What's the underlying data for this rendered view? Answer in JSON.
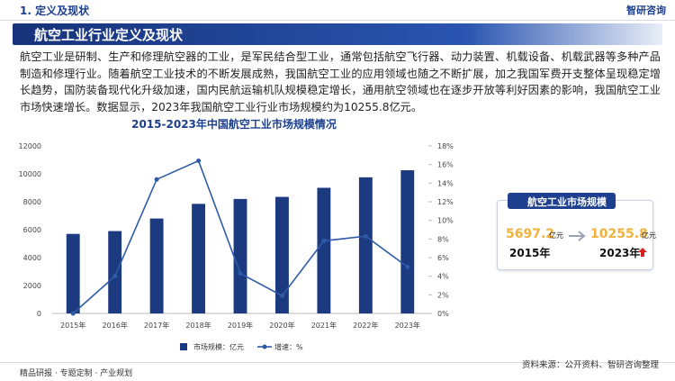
{
  "header": {
    "section": "1. 定义及现状",
    "logo": "智研咨询"
  },
  "banner": "航空工业行业定义及现状",
  "paragraph": "航空工业是研制、生产和修理航空器的工业，是军民结合型工业，通常包括航空飞行器、动力装置、机载设备、机载武器等多种产品制造和修理行业。随着航空工业技术的不断发展成熟，我国航空工业的应用领域也随之不断扩展，加之我国军费开支整体呈现稳定增长趋势，国防装备现代化升级加速，国内民航运输机队规模稳定增长，通用航空领域也在逐步开放等利好因素的影响，我国航空工业市场快速增长。数据显示，2023年我国航空工业行业市场规模约为10255.8亿元。",
  "chart_data": {
    "type": "bar",
    "title": "2015-2023年中国航空工业市场规模情况",
    "categories": [
      "2015年",
      "2016年",
      "2017年",
      "2018年",
      "2019年",
      "2020年",
      "2021年",
      "2022年",
      "2023年"
    ],
    "series": [
      {
        "name": "市场规模：亿元",
        "type": "bar",
        "color": "#1b3a80",
        "values": [
          5697.2,
          5900,
          6800,
          7850,
          8200,
          8350,
          9000,
          9750,
          10255.8
        ]
      },
      {
        "name": "增速：%",
        "type": "line",
        "axis": "y2",
        "color": "#2f5aa8",
        "values": [
          0,
          4,
          14.4,
          16.4,
          4.3,
          1.9,
          7.8,
          8.3,
          5
        ]
      }
    ],
    "ylim": [
      0,
      12000
    ],
    "yticks": [
      0,
      2000,
      4000,
      6000,
      8000,
      10000,
      12000
    ],
    "y2lim": [
      0,
      18
    ],
    "y2ticks": [
      {
        "value": 0,
        "label": "0%"
      },
      {
        "value": 2,
        "label": "2%"
      },
      {
        "value": 4,
        "label": "4%"
      },
      {
        "value": 6,
        "label": "6%"
      },
      {
        "value": 8,
        "label": "8%"
      },
      {
        "value": 10,
        "label": "10%"
      },
      {
        "value": 12,
        "label": "12%"
      },
      {
        "value": 14,
        "label": "14%"
      },
      {
        "value": 16,
        "label": "16%"
      },
      {
        "value": 18,
        "label": "18%"
      }
    ],
    "grid": false,
    "legend": "bottom"
  },
  "card": {
    "title": "航空工业市场规模",
    "start_value": 5697.2,
    "start_unit": "亿元",
    "start_year": "2015年",
    "end_value": 10255.8,
    "end_unit": "亿元",
    "end_year": "2023年"
  },
  "footer": {
    "left": "精品研报 · 专题定制 · 产业规划",
    "source": "资料来源：公开资料、智研咨询整理"
  }
}
